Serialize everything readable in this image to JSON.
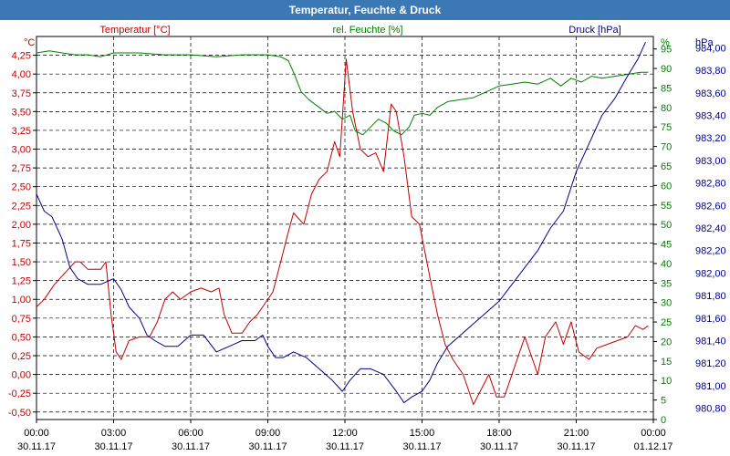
{
  "window": {
    "title": "Temperatur, Feuchte & Druck"
  },
  "chart_data": {
    "type": "line",
    "title": "Temperatur, Feuchte & Druck",
    "colors": {
      "temperature": "#c00000",
      "humidity": "#008000",
      "pressure": "#00008b",
      "titlebar": "#3c78b4"
    },
    "axes": {
      "temperature": {
        "unit": "°C",
        "label": "Temperatur [°C]",
        "ylim": [
          -0.6,
          4.5
        ],
        "ticks": [
          "-0,50",
          "-0,25",
          "0,00",
          "0,25",
          "0,50",
          "0,75",
          "1,00",
          "1,25",
          "1,50",
          "1,75",
          "2,00",
          "2,25",
          "2,50",
          "2,75",
          "3,00",
          "3,25",
          "3,50",
          "3,75",
          "4,00",
          "4,25"
        ]
      },
      "humidity": {
        "unit": "%",
        "label": "rel. Feuchte [%]",
        "ylim": [
          0,
          98.2
        ],
        "ticks": [
          "0",
          "5",
          "10",
          "15",
          "20",
          "25",
          "30",
          "35",
          "40",
          "45",
          "50",
          "55",
          "60",
          "65",
          "70",
          "75",
          "80",
          "85",
          "90",
          "95"
        ]
      },
      "pressure": {
        "unit": "hPa",
        "label": "Druck [hPa]",
        "ylim": [
          980.7,
          984.1
        ],
        "ticks": [
          "980,80",
          "981,00",
          "981,20",
          "981,40",
          "981,60",
          "981,80",
          "982,00",
          "982,20",
          "982,40",
          "982,60",
          "982,80",
          "983,00",
          "983,20",
          "983,40",
          "983,60",
          "983,80",
          "984,00"
        ]
      }
    },
    "x": {
      "range_hours": [
        0,
        24
      ],
      "ticks": [
        {
          "time": "00:00",
          "date": "30.11.17"
        },
        {
          "time": "03:00",
          "date": "30.11.17"
        },
        {
          "time": "06:00",
          "date": "30.11.17"
        },
        {
          "time": "09:00",
          "date": "30.11.17"
        },
        {
          "time": "12:00",
          "date": "30.11.17"
        },
        {
          "time": "15:00",
          "date": "30.11.17"
        },
        {
          "time": "18:00",
          "date": "30.11.17"
        },
        {
          "time": "21:00",
          "date": "30.11.17"
        },
        {
          "time": "00:00",
          "date": "01.12.17"
        }
      ]
    },
    "series": [
      {
        "name": "Temperatur [°C]",
        "axis": "temperature",
        "points": [
          [
            0,
            0.9
          ],
          [
            0.3,
            1.0
          ],
          [
            0.7,
            1.2
          ],
          [
            1.1,
            1.35
          ],
          [
            1.5,
            1.5
          ],
          [
            1.7,
            1.5
          ],
          [
            2.0,
            1.4
          ],
          [
            2.2,
            1.4
          ],
          [
            2.5,
            1.4
          ],
          [
            2.7,
            1.5
          ],
          [
            2.9,
            0.8
          ],
          [
            3.1,
            0.3
          ],
          [
            3.3,
            0.2
          ],
          [
            3.6,
            0.45
          ],
          [
            4.0,
            0.5
          ],
          [
            4.4,
            0.5
          ],
          [
            4.7,
            0.7
          ],
          [
            5.0,
            1.0
          ],
          [
            5.3,
            1.1
          ],
          [
            5.6,
            1.0
          ],
          [
            6.0,
            1.1
          ],
          [
            6.4,
            1.15
          ],
          [
            6.8,
            1.1
          ],
          [
            7.1,
            1.15
          ],
          [
            7.3,
            0.8
          ],
          [
            7.6,
            0.55
          ],
          [
            8.0,
            0.55
          ],
          [
            8.3,
            0.7
          ],
          [
            8.6,
            0.8
          ],
          [
            8.9,
            0.95
          ],
          [
            9.2,
            1.1
          ],
          [
            9.5,
            1.5
          ],
          [
            9.8,
            1.9
          ],
          [
            10.0,
            2.15
          ],
          [
            10.4,
            2.0
          ],
          [
            10.7,
            2.4
          ],
          [
            11.0,
            2.6
          ],
          [
            11.3,
            2.7
          ],
          [
            11.6,
            3.1
          ],
          [
            11.8,
            2.9
          ],
          [
            12.05,
            4.2
          ],
          [
            12.3,
            3.5
          ],
          [
            12.6,
            3.0
          ],
          [
            12.9,
            2.9
          ],
          [
            13.2,
            2.95
          ],
          [
            13.5,
            2.7
          ],
          [
            13.8,
            3.6
          ],
          [
            14.0,
            3.5
          ],
          [
            14.3,
            2.9
          ],
          [
            14.6,
            2.1
          ],
          [
            14.9,
            2.0
          ],
          [
            15.3,
            1.3
          ],
          [
            15.6,
            0.8
          ],
          [
            15.9,
            0.4
          ],
          [
            16.2,
            0.2
          ],
          [
            16.6,
            0.0
          ],
          [
            17.0,
            -0.4
          ],
          [
            17.3,
            -0.2
          ],
          [
            17.6,
            0.0
          ],
          [
            17.9,
            -0.3
          ],
          [
            18.2,
            -0.3
          ],
          [
            18.5,
            0.0
          ],
          [
            18.8,
            0.3
          ],
          [
            19.0,
            0.5
          ],
          [
            19.2,
            0.3
          ],
          [
            19.5,
            0.0
          ],
          [
            19.8,
            0.5
          ],
          [
            20.2,
            0.7
          ],
          [
            20.5,
            0.4
          ],
          [
            20.8,
            0.7
          ],
          [
            21.1,
            0.3
          ],
          [
            21.5,
            0.2
          ],
          [
            21.8,
            0.35
          ],
          [
            22.2,
            0.4
          ],
          [
            22.6,
            0.45
          ],
          [
            23.0,
            0.5
          ],
          [
            23.3,
            0.65
          ],
          [
            23.6,
            0.6
          ],
          [
            23.8,
            0.65
          ]
        ]
      },
      {
        "name": "rel. Feuchte [%]",
        "axis": "humidity",
        "points": [
          [
            0,
            94
          ],
          [
            0.5,
            94.5
          ],
          [
            1.0,
            94
          ],
          [
            1.5,
            93.5
          ],
          [
            2.0,
            93.5
          ],
          [
            2.5,
            93
          ],
          [
            3.0,
            94
          ],
          [
            3.5,
            94
          ],
          [
            4.0,
            94
          ],
          [
            5.0,
            93.5
          ],
          [
            6.0,
            93.5
          ],
          [
            7.0,
            93
          ],
          [
            8.0,
            93.5
          ],
          [
            9.0,
            93.5
          ],
          [
            9.5,
            93
          ],
          [
            9.8,
            92
          ],
          [
            10.0,
            89
          ],
          [
            10.3,
            84
          ],
          [
            10.6,
            82
          ],
          [
            11.0,
            80
          ],
          [
            11.3,
            78.5
          ],
          [
            11.6,
            79
          ],
          [
            11.9,
            77
          ],
          [
            12.2,
            78
          ],
          [
            12.4,
            74
          ],
          [
            12.7,
            73
          ],
          [
            13.0,
            75
          ],
          [
            13.3,
            77
          ],
          [
            13.6,
            76
          ],
          [
            13.9,
            74
          ],
          [
            14.2,
            73
          ],
          [
            14.5,
            75
          ],
          [
            14.7,
            78
          ],
          [
            15.0,
            78.5
          ],
          [
            15.3,
            78
          ],
          [
            15.6,
            80
          ],
          [
            16.0,
            81.5
          ],
          [
            16.5,
            82
          ],
          [
            17.0,
            82.5
          ],
          [
            17.5,
            84
          ],
          [
            18.0,
            85.5
          ],
          [
            18.5,
            86
          ],
          [
            19.0,
            86.5
          ],
          [
            19.5,
            86
          ],
          [
            20.0,
            87.5
          ],
          [
            20.4,
            85.5
          ],
          [
            20.8,
            87.5
          ],
          [
            21.2,
            86.5
          ],
          [
            21.6,
            88
          ],
          [
            22.0,
            87.5
          ],
          [
            22.5,
            88
          ],
          [
            23.0,
            88.5
          ],
          [
            23.5,
            89
          ],
          [
            23.8,
            89
          ]
        ]
      },
      {
        "name": "Druck [hPa]",
        "axis": "pressure",
        "points": [
          [
            0,
            982.7
          ],
          [
            0.3,
            982.55
          ],
          [
            0.6,
            982.5
          ],
          [
            1.0,
            982.3
          ],
          [
            1.3,
            982.05
          ],
          [
            1.6,
            981.95
          ],
          [
            2.0,
            981.9
          ],
          [
            2.5,
            981.9
          ],
          [
            3.0,
            981.95
          ],
          [
            3.3,
            981.85
          ],
          [
            3.6,
            981.7
          ],
          [
            4.0,
            981.6
          ],
          [
            4.3,
            981.45
          ],
          [
            4.6,
            981.4
          ],
          [
            5.0,
            981.35
          ],
          [
            5.5,
            981.35
          ],
          [
            6.0,
            981.45
          ],
          [
            6.5,
            981.45
          ],
          [
            7.0,
            981.3
          ],
          [
            7.5,
            981.35
          ],
          [
            8.0,
            981.4
          ],
          [
            8.5,
            981.4
          ],
          [
            8.8,
            981.45
          ],
          [
            9.0,
            981.35
          ],
          [
            9.3,
            981.25
          ],
          [
            9.6,
            981.25
          ],
          [
            10.0,
            981.3
          ],
          [
            10.5,
            981.25
          ],
          [
            11.0,
            981.15
          ],
          [
            11.5,
            981.05
          ],
          [
            11.9,
            980.95
          ],
          [
            12.2,
            981.05
          ],
          [
            12.6,
            981.15
          ],
          [
            13.0,
            981.15
          ],
          [
            13.5,
            981.1
          ],
          [
            14.0,
            980.95
          ],
          [
            14.3,
            980.85
          ],
          [
            14.6,
            980.9
          ],
          [
            15.0,
            980.95
          ],
          [
            15.3,
            981.05
          ],
          [
            15.6,
            981.2
          ],
          [
            16.0,
            981.35
          ],
          [
            16.5,
            981.45
          ],
          [
            17.0,
            981.55
          ],
          [
            17.5,
            981.65
          ],
          [
            18.0,
            981.75
          ],
          [
            18.5,
            981.9
          ],
          [
            19.0,
            982.05
          ],
          [
            19.5,
            982.2
          ],
          [
            20.0,
            982.4
          ],
          [
            20.5,
            982.55
          ],
          [
            21.0,
            982.9
          ],
          [
            21.5,
            983.15
          ],
          [
            22.0,
            983.4
          ],
          [
            22.5,
            983.55
          ],
          [
            23.0,
            983.75
          ],
          [
            23.4,
            983.9
          ],
          [
            23.7,
            984.05
          ]
        ]
      }
    ]
  }
}
